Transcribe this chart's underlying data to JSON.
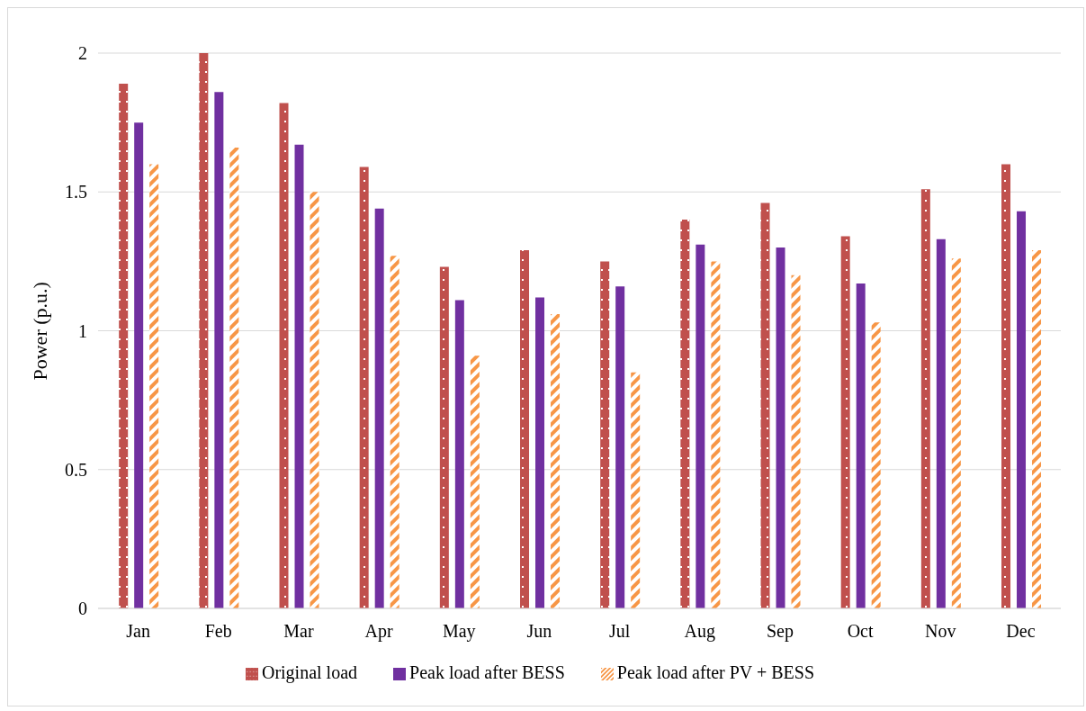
{
  "chart_data": {
    "type": "bar",
    "ylabel": "Power (p.u.)",
    "categories": [
      "Jan",
      "Feb",
      "Mar",
      "Apr",
      "May",
      "Jun",
      "Jul",
      "Aug",
      "Sep",
      "Oct",
      "Nov",
      "Dec"
    ],
    "series": [
      {
        "name": "Original load",
        "color": "#c0504d",
        "values": [
          1.89,
          2.0,
          1.82,
          1.59,
          1.23,
          1.29,
          1.25,
          1.4,
          1.46,
          1.34,
          1.51,
          1.6
        ]
      },
      {
        "name": "Peak load after BESS",
        "color": "#7030a0",
        "values": [
          1.75,
          1.86,
          1.67,
          1.44,
          1.11,
          1.12,
          1.16,
          1.31,
          1.3,
          1.17,
          1.33,
          1.43
        ]
      },
      {
        "name": "Peak load after PV + BESS",
        "color": "#f79646",
        "values": [
          1.6,
          1.66,
          1.5,
          1.27,
          0.91,
          1.06,
          0.85,
          1.25,
          1.2,
          1.03,
          1.26,
          1.29
        ]
      }
    ],
    "ylim": [
      0,
      2
    ],
    "yticks": [
      0,
      0.5,
      1,
      1.5,
      2
    ],
    "grid": "y",
    "legend": "bottom"
  }
}
